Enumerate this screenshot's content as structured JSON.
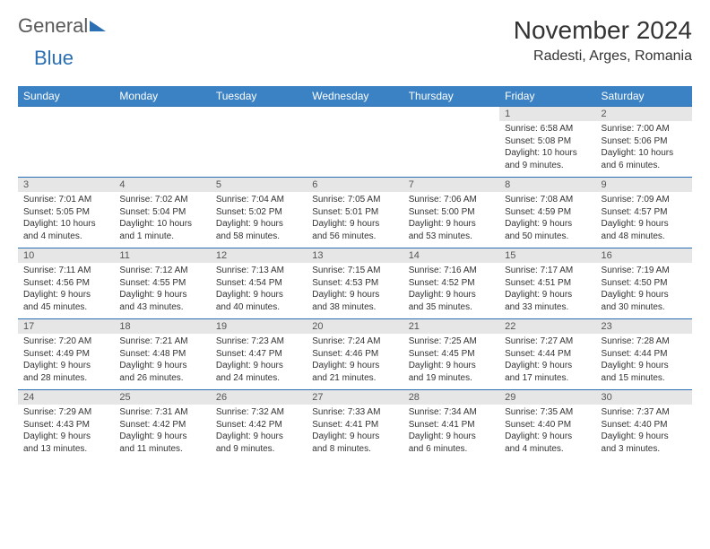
{
  "logo": {
    "general": "General",
    "blue": "Blue"
  },
  "title": "November 2024",
  "location": "Radesti, Arges, Romania",
  "colors": {
    "header_bg": "#3b82c4",
    "header_text": "#ffffff",
    "border": "#2b6fb3",
    "daynum_bg": "#e6e6e6",
    "text": "#333333",
    "logo_gray": "#5a5a5a",
    "logo_blue": "#2b6fb3",
    "page_bg": "#ffffff"
  },
  "typography": {
    "month_title_pt": 28,
    "location_pt": 16,
    "dayheader_pt": 12,
    "daynum_pt": 11,
    "details_pt": 10
  },
  "table": {
    "type": "calendar-table",
    "columns": [
      "Sunday",
      "Monday",
      "Tuesday",
      "Wednesday",
      "Thursday",
      "Friday",
      "Saturday"
    ],
    "weeks": [
      [
        null,
        null,
        null,
        null,
        null,
        {
          "n": "1",
          "sr": "Sunrise: 6:58 AM",
          "ss": "Sunset: 5:08 PM",
          "d1": "Daylight: 10 hours",
          "d2": "and 9 minutes."
        },
        {
          "n": "2",
          "sr": "Sunrise: 7:00 AM",
          "ss": "Sunset: 5:06 PM",
          "d1": "Daylight: 10 hours",
          "d2": "and 6 minutes."
        }
      ],
      [
        {
          "n": "3",
          "sr": "Sunrise: 7:01 AM",
          "ss": "Sunset: 5:05 PM",
          "d1": "Daylight: 10 hours",
          "d2": "and 4 minutes."
        },
        {
          "n": "4",
          "sr": "Sunrise: 7:02 AM",
          "ss": "Sunset: 5:04 PM",
          "d1": "Daylight: 10 hours",
          "d2": "and 1 minute."
        },
        {
          "n": "5",
          "sr": "Sunrise: 7:04 AM",
          "ss": "Sunset: 5:02 PM",
          "d1": "Daylight: 9 hours",
          "d2": "and 58 minutes."
        },
        {
          "n": "6",
          "sr": "Sunrise: 7:05 AM",
          "ss": "Sunset: 5:01 PM",
          "d1": "Daylight: 9 hours",
          "d2": "and 56 minutes."
        },
        {
          "n": "7",
          "sr": "Sunrise: 7:06 AM",
          "ss": "Sunset: 5:00 PM",
          "d1": "Daylight: 9 hours",
          "d2": "and 53 minutes."
        },
        {
          "n": "8",
          "sr": "Sunrise: 7:08 AM",
          "ss": "Sunset: 4:59 PM",
          "d1": "Daylight: 9 hours",
          "d2": "and 50 minutes."
        },
        {
          "n": "9",
          "sr": "Sunrise: 7:09 AM",
          "ss": "Sunset: 4:57 PM",
          "d1": "Daylight: 9 hours",
          "d2": "and 48 minutes."
        }
      ],
      [
        {
          "n": "10",
          "sr": "Sunrise: 7:11 AM",
          "ss": "Sunset: 4:56 PM",
          "d1": "Daylight: 9 hours",
          "d2": "and 45 minutes."
        },
        {
          "n": "11",
          "sr": "Sunrise: 7:12 AM",
          "ss": "Sunset: 4:55 PM",
          "d1": "Daylight: 9 hours",
          "d2": "and 43 minutes."
        },
        {
          "n": "12",
          "sr": "Sunrise: 7:13 AM",
          "ss": "Sunset: 4:54 PM",
          "d1": "Daylight: 9 hours",
          "d2": "and 40 minutes."
        },
        {
          "n": "13",
          "sr": "Sunrise: 7:15 AM",
          "ss": "Sunset: 4:53 PM",
          "d1": "Daylight: 9 hours",
          "d2": "and 38 minutes."
        },
        {
          "n": "14",
          "sr": "Sunrise: 7:16 AM",
          "ss": "Sunset: 4:52 PM",
          "d1": "Daylight: 9 hours",
          "d2": "and 35 minutes."
        },
        {
          "n": "15",
          "sr": "Sunrise: 7:17 AM",
          "ss": "Sunset: 4:51 PM",
          "d1": "Daylight: 9 hours",
          "d2": "and 33 minutes."
        },
        {
          "n": "16",
          "sr": "Sunrise: 7:19 AM",
          "ss": "Sunset: 4:50 PM",
          "d1": "Daylight: 9 hours",
          "d2": "and 30 minutes."
        }
      ],
      [
        {
          "n": "17",
          "sr": "Sunrise: 7:20 AM",
          "ss": "Sunset: 4:49 PM",
          "d1": "Daylight: 9 hours",
          "d2": "and 28 minutes."
        },
        {
          "n": "18",
          "sr": "Sunrise: 7:21 AM",
          "ss": "Sunset: 4:48 PM",
          "d1": "Daylight: 9 hours",
          "d2": "and 26 minutes."
        },
        {
          "n": "19",
          "sr": "Sunrise: 7:23 AM",
          "ss": "Sunset: 4:47 PM",
          "d1": "Daylight: 9 hours",
          "d2": "and 24 minutes."
        },
        {
          "n": "20",
          "sr": "Sunrise: 7:24 AM",
          "ss": "Sunset: 4:46 PM",
          "d1": "Daylight: 9 hours",
          "d2": "and 21 minutes."
        },
        {
          "n": "21",
          "sr": "Sunrise: 7:25 AM",
          "ss": "Sunset: 4:45 PM",
          "d1": "Daylight: 9 hours",
          "d2": "and 19 minutes."
        },
        {
          "n": "22",
          "sr": "Sunrise: 7:27 AM",
          "ss": "Sunset: 4:44 PM",
          "d1": "Daylight: 9 hours",
          "d2": "and 17 minutes."
        },
        {
          "n": "23",
          "sr": "Sunrise: 7:28 AM",
          "ss": "Sunset: 4:44 PM",
          "d1": "Daylight: 9 hours",
          "d2": "and 15 minutes."
        }
      ],
      [
        {
          "n": "24",
          "sr": "Sunrise: 7:29 AM",
          "ss": "Sunset: 4:43 PM",
          "d1": "Daylight: 9 hours",
          "d2": "and 13 minutes."
        },
        {
          "n": "25",
          "sr": "Sunrise: 7:31 AM",
          "ss": "Sunset: 4:42 PM",
          "d1": "Daylight: 9 hours",
          "d2": "and 11 minutes."
        },
        {
          "n": "26",
          "sr": "Sunrise: 7:32 AM",
          "ss": "Sunset: 4:42 PM",
          "d1": "Daylight: 9 hours",
          "d2": "and 9 minutes."
        },
        {
          "n": "27",
          "sr": "Sunrise: 7:33 AM",
          "ss": "Sunset: 4:41 PM",
          "d1": "Daylight: 9 hours",
          "d2": "and 8 minutes."
        },
        {
          "n": "28",
          "sr": "Sunrise: 7:34 AM",
          "ss": "Sunset: 4:41 PM",
          "d1": "Daylight: 9 hours",
          "d2": "and 6 minutes."
        },
        {
          "n": "29",
          "sr": "Sunrise: 7:35 AM",
          "ss": "Sunset: 4:40 PM",
          "d1": "Daylight: 9 hours",
          "d2": "and 4 minutes."
        },
        {
          "n": "30",
          "sr": "Sunrise: 7:37 AM",
          "ss": "Sunset: 4:40 PM",
          "d1": "Daylight: 9 hours",
          "d2": "and 3 minutes."
        }
      ]
    ]
  }
}
